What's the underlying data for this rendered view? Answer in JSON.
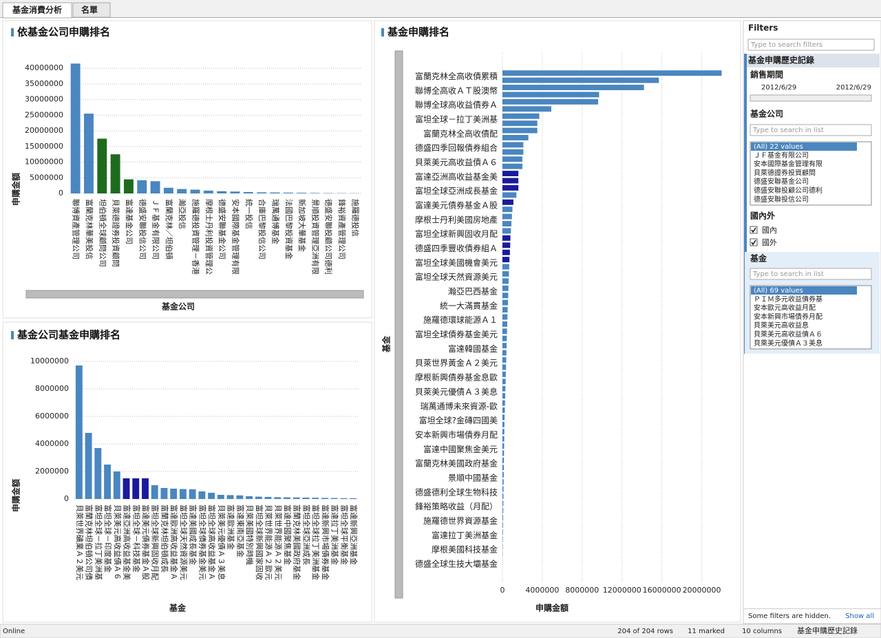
{
  "tabs": [
    "基金消費分析",
    "名單"
  ],
  "chart_data": [
    {
      "type": "bar",
      "title": "依基金公司申購排名",
      "x_label": "基金公司",
      "y_label": "申購金額",
      "categories": [
        "聯博資產管理公司",
        "富蘭克林華美投信",
        "坦伯頓全球顧問公司",
        "貝萊德證券投資顧問",
        "富達基金公司",
        "德盛安聯投信公司",
        "ＪＦ基金有限公司",
        "富蘭克林／坦伯頓",
        "瀚亞投信",
        "施羅德投資管理－香港",
        "摩根士丹利投資管理公",
        "德盛安聯基金公司",
        "安本國際基金管理有限",
        "統一投信",
        "合庫巴黎投信公司",
        "瑞萬通博基金",
        "法國巴黎投資基金",
        "新加坡大華基金",
        "景順投資管理亞洲有限",
        "德盛安聯投顧公司德利",
        "鋒裕資產管理公司",
        "施羅德投信"
      ],
      "values": [
        41500000,
        25500000,
        17500000,
        12500000,
        4500000,
        4200000,
        3900000,
        1800000,
        1400000,
        1200000,
        900000,
        700000,
        600000,
        450000,
        350000,
        300000,
        250000,
        200000,
        150000,
        100000,
        80000,
        50000
      ],
      "colors": [
        "#4a86c0",
        "#4a86c0",
        "#1e6b1e",
        "#1e6b1e",
        "#1e6b1e",
        "#4a86c0",
        "#4a86c0",
        "#4a86c0",
        "#4a86c0",
        "#4a86c0",
        "#4a86c0",
        "#4a86c0",
        "#4a86c0",
        "#4a86c0",
        "#4a86c0",
        "#4a86c0",
        "#4a86c0",
        "#4a86c0",
        "#4a86c0",
        "#4a86c0",
        "#4a86c0",
        "#4a86c0"
      ],
      "ylim": [
        0,
        44000000
      ],
      "yticks": [
        0,
        5000000,
        10000000,
        15000000,
        20000000,
        25000000,
        30000000,
        35000000,
        40000000
      ],
      "grid": true
    },
    {
      "type": "bar",
      "title": "基金公司基金申購排名",
      "x_label": "基金",
      "y_label": "申購金額",
      "categories": [
        "貝萊世界礦業Ａ２美元",
        "富蘭克林坦伯頓公司債",
        "富坦全球－拉丁美洲基",
        "富坦全球－印度基金",
        "貝萊美元高收益債Ａ６",
        "富達亞洲高收益基金美",
        "富坦全球－科技基金",
        "富達美元債券基金Ａ股",
        "富坦全球新興固收月配",
        "富蘭克林坦伯頓成長",
        "富達歐洲高收益基金Ａ",
        "富坦全球天然資源美元",
        "富達美國成長基金",
        "富坦全球債券基金美元",
        "富坦全球高收益基金Ａ",
        "貝萊美元優債Ａ３美息",
        "富達歐洲基金",
        "富達東南亞基金",
        "貝萊美國特別時機",
        "富坦全球新興國家固收",
        "貝萊世界能源Ａ２歐元",
        "貝萊世界能源Ａ２美元",
        "富達中國聚焦基金",
        "富蘭克林美國政府基金",
        "富坦全球亞洲成長",
        "富坦全球拉丁美洲基金",
        "富達新興市場債券基金",
        "富達拉丁美洲基金",
        "富坦全球平衡基金",
        "富達新興亞洲基金"
      ],
      "values": [
        9700000,
        4800000,
        3700000,
        2500000,
        2000000,
        1500000,
        1500000,
        1500000,
        1000000,
        800000,
        750000,
        720000,
        700000,
        550000,
        450000,
        300000,
        280000,
        260000,
        200000,
        170000,
        150000,
        130000,
        120000,
        110000,
        100000,
        90000,
        80000,
        70000,
        60000,
        55000
      ],
      "colors": [
        "#4a86c0",
        "#4a86c0",
        "#4a86c0",
        "#4a86c0",
        "#4a86c0",
        "#1a1a9c",
        "#1a1a9c",
        "#1a1a9c",
        "#4a86c0",
        "#4a86c0",
        "#4a86c0",
        "#4a86c0",
        "#4a86c0",
        "#4a86c0",
        "#4a86c0",
        "#4a86c0",
        "#4a86c0",
        "#4a86c0",
        "#4a86c0",
        "#4a86c0",
        "#4a86c0",
        "#4a86c0",
        "#4a86c0",
        "#4a86c0",
        "#4a86c0",
        "#4a86c0",
        "#4a86c0",
        "#4a86c0",
        "#4a86c0",
        "#4a86c0"
      ],
      "ylim": [
        0,
        10800000
      ],
      "yticks": [
        0,
        2000000,
        4000000,
        6000000,
        8000000,
        10000000
      ],
      "grid": true
    },
    {
      "type": "barh",
      "title": "基金申購排名",
      "x_label": "申購金額",
      "y_label": "基金",
      "categories": [
        "富蘭克林全高收債累積",
        null,
        "聯博全高收ＡＴ股澳幣",
        null,
        "聯博全球高收益債券Ａ",
        null,
        "富坦全球－拉丁美洲基",
        null,
        "富蘭克林全高收債配",
        null,
        "德盛四季回報債券組合",
        null,
        "貝萊美元高收益債Ａ６",
        null,
        "富達亞洲高收益基金美",
        null,
        "富坦全球亞洲成長基金",
        null,
        "富達美元債券基金Ａ股",
        null,
        "摩根士丹利美國房地產",
        null,
        "富坦全球新興固收月配",
        null,
        "德盛四季豐收債券組Ａ",
        null,
        "富坦全球美國機會美元",
        null,
        "富坦全球天然資源美元",
        null,
        "瀚亞巴西基金",
        null,
        "統一大滿貫基金",
        null,
        "施羅德環球能源Ａ１",
        null,
        "富坦全球債券基金美元",
        null,
        "富達韓國基金",
        null,
        "貝萊世界黃金Ａ２美元",
        null,
        "摩根新興債券基金息歐",
        null,
        "貝萊美元優債Ａ３美息",
        null,
        "瑞萬通博未來資源-歐",
        null,
        "富坦全球?金磚四國美",
        null,
        "安本新興市場債券月配",
        null,
        "富達中國聚焦金美元",
        null,
        "富蘭克林美國政府基金",
        null,
        "景順中國基金",
        null,
        "德盛德利全球生物科技",
        null,
        "鋒裕策略收益（月配）",
        null,
        "施羅德世界資源基金",
        null,
        "富達拉丁美洲基金",
        null,
        "摩根美國科技基金",
        null,
        "德盛全球生技大壩基金"
      ],
      "values": [
        22000000,
        15700000,
        14200000,
        9700000,
        9600000,
        4900000,
        3700000,
        3500000,
        3500000,
        2600000,
        2100000,
        2100000,
        2000000,
        2000000,
        1600000,
        1600000,
        1600000,
        1400000,
        1100000,
        1000000,
        950000,
        900000,
        850000,
        800000,
        780000,
        750000,
        700000,
        680000,
        650000,
        620000,
        600000,
        580000,
        550000,
        520000,
        500000,
        480000,
        460000,
        440000,
        420000,
        400000,
        380000,
        360000,
        340000,
        320000,
        300000,
        280000,
        260000,
        240000,
        220000,
        200000,
        190000,
        180000,
        170000,
        160000,
        150000,
        140000,
        130000,
        120000,
        110000,
        100000,
        90000,
        80000,
        70000,
        60000,
        50000,
        40000,
        30000,
        20000,
        10000
      ],
      "colors": [
        "#4a86c0",
        "#4a86c0",
        "#4a86c0",
        "#4a86c0",
        "#4a86c0",
        "#4a86c0",
        "#4a86c0",
        "#4a86c0",
        "#4a86c0",
        "#4a86c0",
        "#4a86c0",
        "#4a86c0",
        "#4a86c0",
        "#4a86c0",
        "#1a1a9c",
        "#1a1a9c",
        "#1a1a9c",
        "#4a86c0",
        "#1a1a9c",
        "#4a86c0",
        "#4a86c0",
        "#4a86c0",
        "#4a86c0",
        "#1a1a9c",
        "#1a1a9c",
        "#1a1a9c",
        "#1a1a9c",
        "#4a86c0",
        "#4a86c0",
        "#4a86c0",
        "#4a86c0",
        "#4a86c0",
        "#4a86c0",
        "#4a86c0",
        "#4a86c0",
        "#4a86c0",
        "#4a86c0",
        "#4a86c0",
        "#4a86c0",
        "#4a86c0",
        "#4a86c0",
        "#4a86c0",
        "#4a86c0",
        "#4a86c0",
        "#4a86c0",
        "#4a86c0",
        "#4a86c0",
        "#4a86c0",
        "#4a86c0",
        "#4a86c0",
        "#4a86c0",
        "#4a86c0",
        "#4a86c0",
        "#4a86c0",
        "#4a86c0",
        "#4a86c0",
        "#4a86c0",
        "#4a86c0",
        "#4a86c0",
        "#4a86c0",
        "#4a86c0",
        "#4a86c0",
        "#4a86c0",
        "#4a86c0",
        "#4a86c0",
        "#4a86c0",
        "#4a86c0",
        "#4a86c0",
        "#4a86c0"
      ],
      "xlim": [
        0,
        23000000
      ],
      "xticks": [
        0,
        4000000,
        8000000,
        12000000,
        16000000,
        20000000
      ],
      "grid": true
    }
  ],
  "filters": {
    "title": "Filters",
    "search": "Type to search filters",
    "table": "基金申購歷史記錄",
    "period": {
      "label": "銷售期間",
      "from": "2012/6/29",
      "to": "2012/6/29"
    },
    "company": {
      "label": "基金公司",
      "search": "Type to search in list",
      "items": [
        "(All) 22 values",
        "ＪＦ基金有限公司",
        "安本國際基金管理有限",
        "貝萊德證券投資顧問",
        "德盛安聯基金公司",
        "德盛安聯投顧公司德利",
        "德盛安聯投信公司"
      ]
    },
    "region": {
      "label": "國內外",
      "items": [
        "國內",
        "國外"
      ]
    },
    "fund": {
      "label": "基金",
      "search": "Type to search in list",
      "items": [
        "(All) 69 values",
        "ＰＩＭ多元收益債券基",
        "安本歐元高收益月配",
        "安本新興市場債券月配",
        "貝萊美元高收益息",
        "貝萊美元高收益債Ａ６",
        "貝萊美元優債Ａ３美息"
      ]
    },
    "hidden": "Some filters are hidden.",
    "show_all": "Show all"
  },
  "status": {
    "state": "Online",
    "rows": "204 of 204 rows",
    "marked": "11 marked",
    "columns": "10 columns",
    "table": "基金申購歷史記錄"
  }
}
